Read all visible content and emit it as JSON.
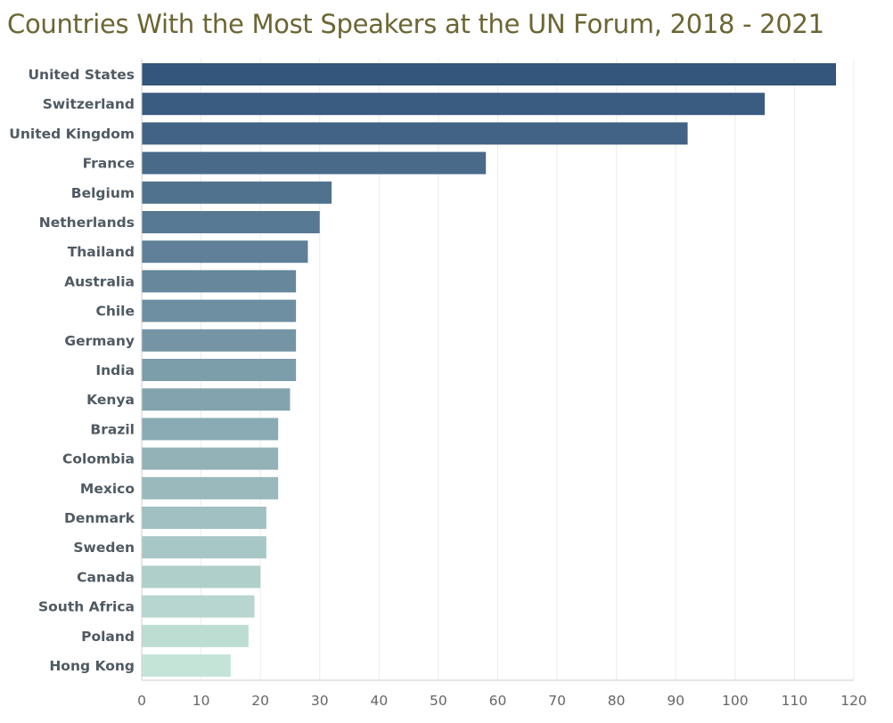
{
  "chart_data": {
    "type": "bar",
    "orientation": "horizontal",
    "title": "Countries With the Most Speakers at the UN Forum, 2018 - 2021",
    "xlabel": "",
    "ylabel": "",
    "xlim": [
      0,
      120
    ],
    "x_ticks": [
      0,
      10,
      20,
      30,
      40,
      50,
      60,
      70,
      80,
      90,
      100,
      110,
      120
    ],
    "grid": "vertical",
    "legend": "none",
    "color_scale": [
      "#34557c",
      "#c4e4d8"
    ],
    "categories": [
      "United States",
      "Switzerland",
      "United Kingdom",
      "France",
      "Belgium",
      "Netherlands",
      "Thailand",
      "Australia",
      "Chile",
      "Germany",
      "India",
      "Kenya",
      "Brazil",
      "Colombia",
      "Mexico",
      "Denmark",
      "Sweden",
      "Canada",
      "South Africa",
      "Poland",
      "Hong Kong"
    ],
    "values": [
      117,
      105,
      92,
      58,
      32,
      30,
      28,
      26,
      26,
      26,
      26,
      25,
      23,
      23,
      23,
      21,
      21,
      20,
      19,
      18,
      15
    ]
  }
}
